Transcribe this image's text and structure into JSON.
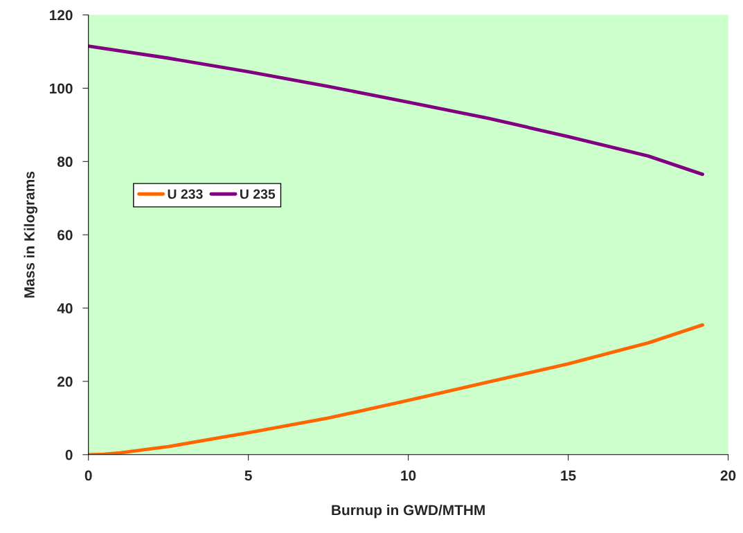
{
  "chart_data": {
    "type": "line",
    "xlabel": "Burnup in GWD/MTHM",
    "ylabel": "Mass in Kilograms",
    "series": [
      {
        "name": "U 233",
        "color": "#ff6600",
        "x": [
          0,
          0.5,
          1,
          2.5,
          5,
          7.5,
          10,
          12.5,
          15,
          17.5,
          19.2
        ],
        "values": [
          0,
          0.1,
          0.5,
          2.2,
          6,
          10,
          14.8,
          19.8,
          24.8,
          30.5,
          35.4
        ]
      },
      {
        "name": "U 235",
        "color": "#800080",
        "x": [
          0,
          2.5,
          5,
          7.5,
          10,
          12.5,
          15,
          17.5,
          19.2
        ],
        "values": [
          111.5,
          108.2,
          104.5,
          100.5,
          96.2,
          91.8,
          86.8,
          81.5,
          76.5
        ]
      }
    ],
    "xlim": [
      0,
      20
    ],
    "xticks": [
      0,
      5,
      10,
      15,
      20
    ],
    "ylim": [
      0,
      120
    ],
    "yticks": [
      0,
      20,
      40,
      60,
      80,
      100,
      120
    ],
    "grid": false,
    "legend": "left"
  }
}
